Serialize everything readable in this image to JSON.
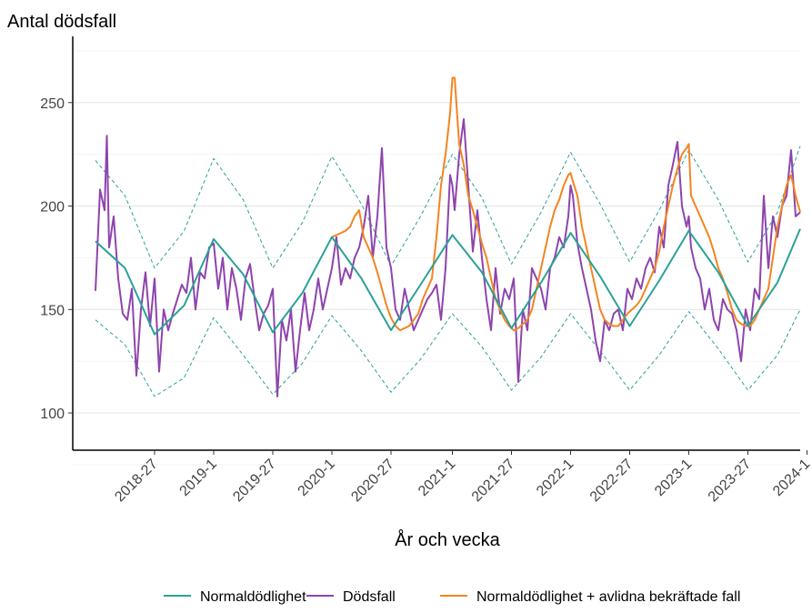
{
  "chart_data": {
    "type": "line",
    "title": "",
    "ylabel": "Antal dödsfall",
    "xlabel": "År och vecka",
    "ylim": [
      82,
      282
    ],
    "xlim": [
      -10,
      310
    ],
    "y_ticks": [
      100,
      150,
      200,
      250
    ],
    "x_ticks": [
      {
        "label": "2018-27",
        "week_index": 26
      },
      {
        "label": "2019-1",
        "week_index": 52
      },
      {
        "label": "2019-27",
        "week_index": 78
      },
      {
        "label": "2020-1",
        "week_index": 104
      },
      {
        "label": "2020-27",
        "week_index": 130
      },
      {
        "label": "2021-1",
        "week_index": 157
      },
      {
        "label": "2021-27",
        "week_index": 183
      },
      {
        "label": "2022-1",
        "week_index": 209
      },
      {
        "label": "2022-27",
        "week_index": 235
      },
      {
        "label": "2023-1",
        "week_index": 261
      },
      {
        "label": "2023-27",
        "week_index": 287
      },
      {
        "label": "2024-1",
        "week_index": 313
      }
    ],
    "grid": true,
    "legend_position": "bottom",
    "colors": {
      "normal": "#2aa198",
      "deaths": "#8e44ad",
      "covid": "#f28522",
      "bands": "#2aa198"
    },
    "series": [
      {
        "name": "Normaldödlighet",
        "key": "normal",
        "x": [
          0,
          13,
          26,
          39,
          52,
          65,
          78,
          91,
          104,
          117,
          130,
          143,
          157,
          170,
          183,
          196,
          209,
          222,
          235,
          248,
          261,
          274,
          287,
          300,
          310
        ],
        "values": [
          183,
          170,
          138,
          152,
          184,
          167,
          139,
          158,
          185,
          165,
          140,
          162,
          186,
          168,
          141,
          163,
          187,
          166,
          142,
          164,
          188,
          168,
          142,
          163,
          189
        ]
      },
      {
        "name": "Normaldödlighet upper",
        "key": "upper",
        "x": [
          0,
          13,
          26,
          39,
          52,
          65,
          78,
          91,
          104,
          117,
          130,
          143,
          157,
          170,
          183,
          196,
          209,
          222,
          235,
          248,
          261,
          274,
          287,
          300,
          310
        ],
        "values": [
          222,
          205,
          170,
          188,
          223,
          203,
          170,
          192,
          224,
          201,
          171,
          195,
          225,
          204,
          172,
          197,
          226,
          201,
          173,
          198,
          227,
          203,
          173,
          197,
          229
        ]
      },
      {
        "name": "Normaldödlighet lower",
        "key": "lower",
        "x": [
          0,
          13,
          26,
          39,
          52,
          65,
          78,
          91,
          104,
          117,
          130,
          143,
          157,
          170,
          183,
          196,
          209,
          222,
          235,
          248,
          261,
          274,
          287,
          300,
          310
        ],
        "values": [
          145,
          133,
          108,
          117,
          146,
          128,
          109,
          124,
          147,
          130,
          110,
          126,
          148,
          132,
          111,
          127,
          148,
          130,
          111,
          128,
          149,
          131,
          111,
          128,
          150
        ]
      },
      {
        "name": "Dödsfall",
        "key": "deaths",
        "x": [
          0,
          2,
          4,
          5,
          6,
          8,
          10,
          12,
          14,
          16,
          18,
          20,
          22,
          24,
          26,
          28,
          30,
          32,
          34,
          36,
          38,
          40,
          42,
          44,
          46,
          48,
          50,
          52,
          54,
          56,
          58,
          60,
          62,
          64,
          66,
          68,
          70,
          72,
          74,
          76,
          78,
          80,
          82,
          84,
          86,
          88,
          90,
          92,
          94,
          96,
          98,
          100,
          102,
          104,
          106,
          108,
          110,
          112,
          114,
          116,
          118,
          120,
          122,
          124,
          126,
          128,
          130,
          132,
          134,
          136,
          138,
          140,
          142,
          144,
          146,
          148,
          150,
          152,
          154,
          156,
          157,
          158,
          160,
          162,
          164,
          166,
          168,
          170,
          172,
          174,
          176,
          178,
          180,
          182,
          184,
          186,
          188,
          190,
          192,
          194,
          196,
          198,
          200,
          202,
          204,
          206,
          208,
          209,
          210,
          212,
          214,
          216,
          218,
          220,
          222,
          224,
          226,
          228,
          230,
          232,
          234,
          236,
          238,
          240,
          242,
          244,
          246,
          248,
          250,
          252,
          254,
          256,
          258,
          260,
          261,
          262,
          264,
          266,
          268,
          270,
          272,
          274,
          276,
          278,
          280,
          282,
          284,
          286,
          288,
          290,
          292,
          294,
          296,
          298,
          300,
          302,
          304,
          306,
          308,
          310
        ],
        "values": [
          159,
          208,
          198,
          234,
          180,
          195,
          165,
          148,
          145,
          160,
          118,
          150,
          168,
          142,
          165,
          120,
          150,
          140,
          148,
          155,
          162,
          158,
          175,
          150,
          168,
          165,
          180,
          182,
          160,
          175,
          150,
          170,
          160,
          145,
          165,
          172,
          155,
          140,
          148,
          152,
          160,
          108,
          145,
          135,
          150,
          120,
          140,
          158,
          140,
          150,
          165,
          150,
          160,
          170,
          185,
          162,
          170,
          165,
          175,
          180,
          190,
          205,
          175,
          195,
          228,
          180,
          170,
          150,
          145,
          160,
          150,
          140,
          145,
          150,
          155,
          158,
          162,
          145,
          170,
          215,
          210,
          198,
          225,
          242,
          210,
          178,
          198,
          175,
          155,
          140,
          170,
          148,
          160,
          155,
          165,
          115,
          150,
          140,
          170,
          165,
          160,
          150,
          170,
          175,
          185,
          180,
          195,
          210,
          205,
          182,
          170,
          160,
          150,
          135,
          125,
          145,
          140,
          148,
          150,
          140,
          160,
          155,
          165,
          160,
          170,
          175,
          168,
          190,
          180,
          210,
          220,
          231,
          200,
          190,
          195,
          180,
          170,
          165,
          150,
          160,
          145,
          140,
          155,
          150,
          148,
          140,
          125,
          150,
          140,
          160,
          155,
          205,
          170,
          195,
          185,
          200,
          205,
          227,
          195,
          197
        ]
      },
      {
        "name": "Normaldödlighet + avlidna bekräftade fall",
        "key": "covid",
        "x": [
          104,
          106,
          108,
          110,
          112,
          114,
          116,
          118,
          120,
          122,
          124,
          126,
          128,
          130,
          132,
          134,
          136,
          138,
          140,
          142,
          144,
          146,
          148,
          150,
          152,
          154,
          156,
          157,
          158,
          160,
          162,
          164,
          166,
          168,
          170,
          172,
          174,
          176,
          178,
          180,
          182,
          184,
          186,
          188,
          190,
          192,
          194,
          196,
          198,
          200,
          202,
          204,
          206,
          208,
          209,
          210,
          212,
          214,
          216,
          218,
          220,
          222,
          224,
          226,
          228,
          230,
          232,
          234,
          236,
          238,
          240,
          242,
          244,
          246,
          248,
          250,
          252,
          254,
          256,
          258,
          260,
          261,
          262,
          264,
          266,
          268,
          270,
          272,
          274,
          276,
          278,
          280,
          282,
          284,
          286,
          288,
          290,
          292,
          294,
          296,
          298,
          300,
          302,
          304,
          306,
          308,
          310
        ],
        "values": [
          185,
          186,
          187,
          188,
          190,
          195,
          198,
          185,
          180,
          175,
          168,
          160,
          152,
          146,
          142,
          140,
          141,
          142,
          145,
          148,
          155,
          160,
          165,
          185,
          210,
          225,
          245,
          262,
          262,
          230,
          220,
          205,
          198,
          190,
          182,
          175,
          165,
          155,
          150,
          145,
          142,
          140,
          141,
          143,
          145,
          150,
          160,
          170,
          180,
          190,
          198,
          203,
          210,
          215,
          216,
          212,
          205,
          190,
          180,
          170,
          160,
          150,
          145,
          143,
          142,
          142,
          145,
          148,
          150,
          152,
          155,
          160,
          165,
          170,
          178,
          190,
          200,
          210,
          218,
          225,
          228,
          230,
          205,
          200,
          195,
          190,
          185,
          178,
          170,
          165,
          158,
          150,
          145,
          143,
          142,
          142,
          145,
          150,
          155,
          160,
          175,
          190,
          200,
          210,
          215,
          205,
          197
        ]
      }
    ],
    "legend": [
      {
        "label": "Normaldödlighet",
        "key": "normal"
      },
      {
        "label": "Dödsfall",
        "key": "deaths"
      },
      {
        "label": "Normaldödlighet + avlidna bekräftade fall",
        "key": "covid"
      }
    ]
  }
}
